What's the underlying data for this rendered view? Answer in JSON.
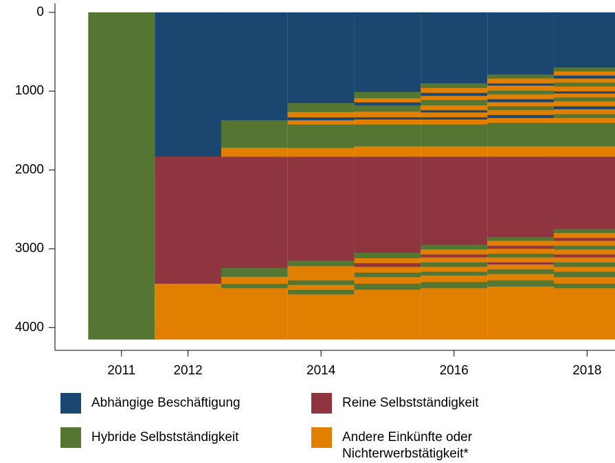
{
  "chart_data": {
    "type": "sequence-index",
    "xlim": [
      2010,
      2018.42
    ],
    "xticks": [
      2011,
      2012,
      2014,
      2016,
      2018
    ],
    "ylim": [
      0,
      4150
    ],
    "yticks": [
      0,
      1000,
      2000,
      3000,
      4000
    ],
    "y_inverted": true,
    "column_width": 1,
    "series": [
      {
        "name": "Abhängige Beschäftigung",
        "color": "#1b4670",
        "segments": [
          {
            "x": 2012,
            "start": 0,
            "end": 1831
          },
          {
            "x": 2013,
            "start": 0,
            "end": 1369
          },
          {
            "x": 2014,
            "start": 0,
            "end": 1150
          },
          {
            "x": 2014,
            "start": 1330,
            "end": 1370
          },
          {
            "x": 2015,
            "start": 0,
            "end": 1010
          },
          {
            "x": 2015,
            "start": 1140,
            "end": 1180
          },
          {
            "x": 2015,
            "start": 1330,
            "end": 1360
          },
          {
            "x": 2016,
            "start": 0,
            "end": 900
          },
          {
            "x": 2016,
            "start": 1020,
            "end": 1060
          },
          {
            "x": 2016,
            "start": 1240,
            "end": 1270
          },
          {
            "x": 2016,
            "start": 1330,
            "end": 1360
          },
          {
            "x": 2017,
            "start": 0,
            "end": 790
          },
          {
            "x": 2017,
            "start": 900,
            "end": 930
          },
          {
            "x": 2017,
            "start": 1100,
            "end": 1140
          },
          {
            "x": 2017,
            "start": 1300,
            "end": 1340
          },
          {
            "x": 2018,
            "start": 0,
            "end": 700
          },
          {
            "x": 2018,
            "start": 800,
            "end": 840
          },
          {
            "x": 2018,
            "start": 1000,
            "end": 1030
          },
          {
            "x": 2018,
            "start": 1190,
            "end": 1230
          }
        ]
      },
      {
        "name": "Reine Selbstständigkeit",
        "color": "#8e353f",
        "segments": [
          {
            "x": 2012,
            "start": 1831,
            "end": 3444
          },
          {
            "x": 2013,
            "start": 1831,
            "end": 3244
          },
          {
            "x": 2014,
            "start": 1831,
            "end": 3150
          },
          {
            "x": 2015,
            "start": 1831,
            "end": 3050
          },
          {
            "x": 2015,
            "start": 3180,
            "end": 3230
          },
          {
            "x": 2016,
            "start": 1831,
            "end": 2950
          },
          {
            "x": 2016,
            "start": 3070,
            "end": 3110
          },
          {
            "x": 2017,
            "start": 1831,
            "end": 2850
          },
          {
            "x": 2017,
            "start": 2960,
            "end": 3000
          },
          {
            "x": 2017,
            "start": 3170,
            "end": 3200
          },
          {
            "x": 2018,
            "start": 1831,
            "end": 2750
          },
          {
            "x": 2018,
            "start": 2860,
            "end": 2900
          },
          {
            "x": 2018,
            "start": 3070,
            "end": 3110
          }
        ]
      },
      {
        "name": "Hybride Selbstständigkeit",
        "color": "#557532",
        "segments": [
          {
            "x": 2011,
            "start": 0,
            "end": 4150
          },
          {
            "x": 2013,
            "start": 1369,
            "end": 1718
          },
          {
            "x": 2013,
            "start": 3244,
            "end": 3357
          },
          {
            "x": 2013,
            "start": 3444,
            "end": 3500
          },
          {
            "x": 2014,
            "start": 1150,
            "end": 1265
          },
          {
            "x": 2014,
            "start": 1420,
            "end": 1720
          },
          {
            "x": 2014,
            "start": 3150,
            "end": 3220
          },
          {
            "x": 2014,
            "start": 3400,
            "end": 3460
          },
          {
            "x": 2014,
            "start": 3520,
            "end": 3580
          },
          {
            "x": 2015,
            "start": 1010,
            "end": 1090
          },
          {
            "x": 2015,
            "start": 1180,
            "end": 1260
          },
          {
            "x": 2015,
            "start": 1420,
            "end": 1700
          },
          {
            "x": 2015,
            "start": 3050,
            "end": 3120
          },
          {
            "x": 2015,
            "start": 3300,
            "end": 3360
          },
          {
            "x": 2015,
            "start": 3440,
            "end": 3520
          },
          {
            "x": 2016,
            "start": 900,
            "end": 960
          },
          {
            "x": 2016,
            "start": 1110,
            "end": 1180
          },
          {
            "x": 2016,
            "start": 1420,
            "end": 1700
          },
          {
            "x": 2016,
            "start": 2950,
            "end": 3010
          },
          {
            "x": 2016,
            "start": 3170,
            "end": 3230
          },
          {
            "x": 2016,
            "start": 3290,
            "end": 3340
          },
          {
            "x": 2016,
            "start": 3420,
            "end": 3500
          },
          {
            "x": 2017,
            "start": 790,
            "end": 840
          },
          {
            "x": 2017,
            "start": 990,
            "end": 1040
          },
          {
            "x": 2017,
            "start": 1190,
            "end": 1240
          },
          {
            "x": 2017,
            "start": 1400,
            "end": 1700
          },
          {
            "x": 2017,
            "start": 2850,
            "end": 2900
          },
          {
            "x": 2017,
            "start": 3060,
            "end": 3110
          },
          {
            "x": 2017,
            "start": 3260,
            "end": 3320
          },
          {
            "x": 2017,
            "start": 3400,
            "end": 3480
          },
          {
            "x": 2018,
            "start": 700,
            "end": 750
          },
          {
            "x": 2018,
            "start": 890,
            "end": 940
          },
          {
            "x": 2018,
            "start": 1080,
            "end": 1130
          },
          {
            "x": 2018,
            "start": 1290,
            "end": 1340
          },
          {
            "x": 2018,
            "start": 1400,
            "end": 1700
          },
          {
            "x": 2018,
            "start": 2750,
            "end": 2800
          },
          {
            "x": 2018,
            "start": 2960,
            "end": 3010
          },
          {
            "x": 2018,
            "start": 3170,
            "end": 3230
          },
          {
            "x": 2018,
            "start": 3290,
            "end": 3360
          },
          {
            "x": 2018,
            "start": 3440,
            "end": 3500
          }
        ]
      },
      {
        "name": "Andere Einkünfte oder Nichterwerbstätigkeit*",
        "color": "#e07f00",
        "segments": [
          {
            "x": 2012,
            "start": 3444,
            "end": 4150
          },
          {
            "x": 2013,
            "start": 1718,
            "end": 1831
          },
          {
            "x": 2013,
            "start": 3357,
            "end": 3444
          },
          {
            "x": 2013,
            "start": 3500,
            "end": 4150
          },
          {
            "x": 2014,
            "start": 1265,
            "end": 1330
          },
          {
            "x": 2014,
            "start": 1370,
            "end": 1420
          },
          {
            "x": 2014,
            "start": 1720,
            "end": 1831
          },
          {
            "x": 2014,
            "start": 3220,
            "end": 3400
          },
          {
            "x": 2014,
            "start": 3460,
            "end": 3520
          },
          {
            "x": 2014,
            "start": 3580,
            "end": 4150
          },
          {
            "x": 2015,
            "start": 1090,
            "end": 1140
          },
          {
            "x": 2015,
            "start": 1260,
            "end": 1330
          },
          {
            "x": 2015,
            "start": 1360,
            "end": 1420
          },
          {
            "x": 2015,
            "start": 1700,
            "end": 1831
          },
          {
            "x": 2015,
            "start": 3120,
            "end": 3180
          },
          {
            "x": 2015,
            "start": 3230,
            "end": 3300
          },
          {
            "x": 2015,
            "start": 3360,
            "end": 3440
          },
          {
            "x": 2015,
            "start": 3520,
            "end": 4150
          },
          {
            "x": 2016,
            "start": 960,
            "end": 1020
          },
          {
            "x": 2016,
            "start": 1060,
            "end": 1110
          },
          {
            "x": 2016,
            "start": 1180,
            "end": 1240
          },
          {
            "x": 2016,
            "start": 1270,
            "end": 1330
          },
          {
            "x": 2016,
            "start": 1360,
            "end": 1420
          },
          {
            "x": 2016,
            "start": 1700,
            "end": 1831
          },
          {
            "x": 2016,
            "start": 3010,
            "end": 3070
          },
          {
            "x": 2016,
            "start": 3110,
            "end": 3170
          },
          {
            "x": 2016,
            "start": 3230,
            "end": 3290
          },
          {
            "x": 2016,
            "start": 3340,
            "end": 3420
          },
          {
            "x": 2016,
            "start": 3500,
            "end": 4150
          },
          {
            "x": 2017,
            "start": 840,
            "end": 900
          },
          {
            "x": 2017,
            "start": 930,
            "end": 990
          },
          {
            "x": 2017,
            "start": 1040,
            "end": 1100
          },
          {
            "x": 2017,
            "start": 1140,
            "end": 1190
          },
          {
            "x": 2017,
            "start": 1240,
            "end": 1300
          },
          {
            "x": 2017,
            "start": 1340,
            "end": 1400
          },
          {
            "x": 2017,
            "start": 1700,
            "end": 1831
          },
          {
            "x": 2017,
            "start": 2900,
            "end": 2960
          },
          {
            "x": 2017,
            "start": 3000,
            "end": 3060
          },
          {
            "x": 2017,
            "start": 3110,
            "end": 3170
          },
          {
            "x": 2017,
            "start": 3200,
            "end": 3260
          },
          {
            "x": 2017,
            "start": 3320,
            "end": 3400
          },
          {
            "x": 2017,
            "start": 3480,
            "end": 4150
          },
          {
            "x": 2018,
            "start": 750,
            "end": 800
          },
          {
            "x": 2018,
            "start": 840,
            "end": 890
          },
          {
            "x": 2018,
            "start": 940,
            "end": 1000
          },
          {
            "x": 2018,
            "start": 1030,
            "end": 1080
          },
          {
            "x": 2018,
            "start": 1130,
            "end": 1190
          },
          {
            "x": 2018,
            "start": 1230,
            "end": 1290
          },
          {
            "x": 2018,
            "start": 1340,
            "end": 1400
          },
          {
            "x": 2018,
            "start": 1700,
            "end": 1831
          },
          {
            "x": 2018,
            "start": 2800,
            "end": 2860
          },
          {
            "x": 2018,
            "start": 2900,
            "end": 2960
          },
          {
            "x": 2018,
            "start": 3010,
            "end": 3070
          },
          {
            "x": 2018,
            "start": 3110,
            "end": 3170
          },
          {
            "x": 2018,
            "start": 3230,
            "end": 3290
          },
          {
            "x": 2018,
            "start": 3360,
            "end": 3440
          },
          {
            "x": 2018,
            "start": 3500,
            "end": 4150
          }
        ]
      }
    ]
  }
}
